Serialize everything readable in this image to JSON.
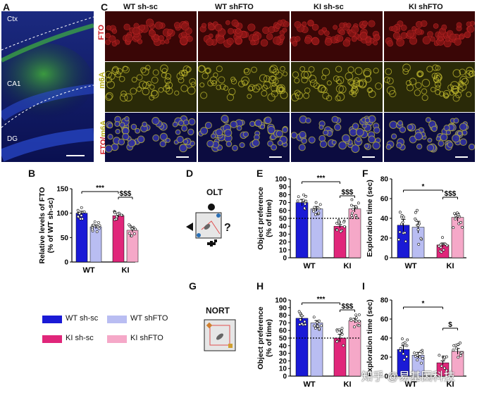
{
  "panels": {
    "A": "A",
    "B": "B",
    "C": "C",
    "D": "D",
    "E": "E",
    "F": "F",
    "G": "G",
    "H": "H",
    "I": "I"
  },
  "panelA": {
    "regions": [
      "Ctx",
      "CA1",
      "DG"
    ]
  },
  "panelC": {
    "columns": [
      "WT sh-sc",
      "WT shFTO",
      "KI sh-sc",
      "KI shFTO"
    ],
    "rows": [
      "FTO",
      "m6A",
      "FTO/m6A"
    ],
    "row_colors": {
      "FTO": "#d0202a",
      "m6A": "#b8b01e",
      "merge_a": "#d0202a",
      "merge_b": "#b8b01e"
    }
  },
  "tasks": {
    "D": "OLT",
    "G": "NORT"
  },
  "legend": [
    {
      "label": "WT sh-sc",
      "color": "#1a1ad6"
    },
    {
      "label": "WT shFTO",
      "color": "#b9bdf2"
    },
    {
      "label": "KI sh-sc",
      "color": "#e0267a"
    },
    {
      "label": "KI shFTO",
      "color": "#f5a8c8"
    }
  ],
  "colors": {
    "wt_sc": "#1a1ad6",
    "wt_sh": "#b9bdf2",
    "ki_sc": "#e0267a",
    "ki_sh": "#f5a8c8"
  },
  "chart_data": [
    {
      "id": "B",
      "type": "bar",
      "ylabel": "Relative levels of FTO\n(% of WT sh-sc)",
      "groups": [
        "WT",
        "KI"
      ],
      "series": [
        "WT sh-sc",
        "WT shFTO",
        "KI sh-sc",
        "KI shFTO"
      ],
      "values": [
        100,
        72,
        95,
        65
      ],
      "errors": [
        4,
        4,
        3,
        4
      ],
      "ylim": [
        0,
        150
      ],
      "yticks": [
        0,
        50,
        100,
        150
      ],
      "annotations": [
        "***",
        "$$$"
      ]
    },
    {
      "id": "E",
      "type": "bar",
      "ylabel": "Object preference\n(% of time)",
      "groups": [
        "WT",
        "KI"
      ],
      "series": [
        "WT sh-sc",
        "WT shFTO",
        "KI sh-sc",
        "KI shFTO"
      ],
      "values": [
        70,
        62,
        40,
        62
      ],
      "errors": [
        4,
        3,
        2,
        4
      ],
      "ylim": [
        0,
        100
      ],
      "yticks": [
        0,
        10,
        20,
        30,
        40,
        50,
        60,
        70,
        80,
        90,
        100
      ],
      "chance": 50,
      "annotations": [
        "***",
        "$$$"
      ]
    },
    {
      "id": "F",
      "type": "bar",
      "ylabel": "Exploration time (sec)",
      "groups": [
        "WT",
        "KI"
      ],
      "series": [
        "WT sh-sc",
        "WT shFTO",
        "KI sh-sc",
        "KI shFTO"
      ],
      "values": [
        33,
        31,
        13,
        41
      ],
      "errors": [
        6,
        6,
        2,
        4
      ],
      "ylim": [
        0,
        80
      ],
      "yticks": [
        0,
        20,
        40,
        60,
        80
      ],
      "annotations": [
        "*",
        "$$$"
      ]
    },
    {
      "id": "H",
      "type": "bar",
      "ylabel": "Object preference\n(% of time)",
      "groups": [
        "WT",
        "KI"
      ],
      "series": [
        "WT sh-sc",
        "WT shFTO",
        "KI sh-sc",
        "KI shFTO"
      ],
      "values": [
        76,
        70,
        50,
        73
      ],
      "errors": [
        3,
        3,
        5,
        3
      ],
      "ylim": [
        0,
        100
      ],
      "yticks": [
        0,
        10,
        20,
        30,
        40,
        50,
        60,
        70,
        80,
        90,
        100
      ],
      "chance": 50,
      "annotations": [
        "***",
        "$$$"
      ]
    },
    {
      "id": "I",
      "type": "bar",
      "ylabel": "Exploration time (sec)",
      "groups": [
        "WT",
        "KI"
      ],
      "series": [
        "WT sh-sc",
        "WT shFTO",
        "KI sh-sc",
        "KI shFTO"
      ],
      "values": [
        28,
        22,
        14,
        26
      ],
      "errors": [
        4,
        3,
        2,
        3
      ],
      "ylim": [
        0,
        80
      ],
      "yticks": [
        0,
        20,
        40,
        60,
        80
      ],
      "annotations": [
        "*",
        "$"
      ]
    }
  ],
  "watermark": "知乎 @易基因科技"
}
